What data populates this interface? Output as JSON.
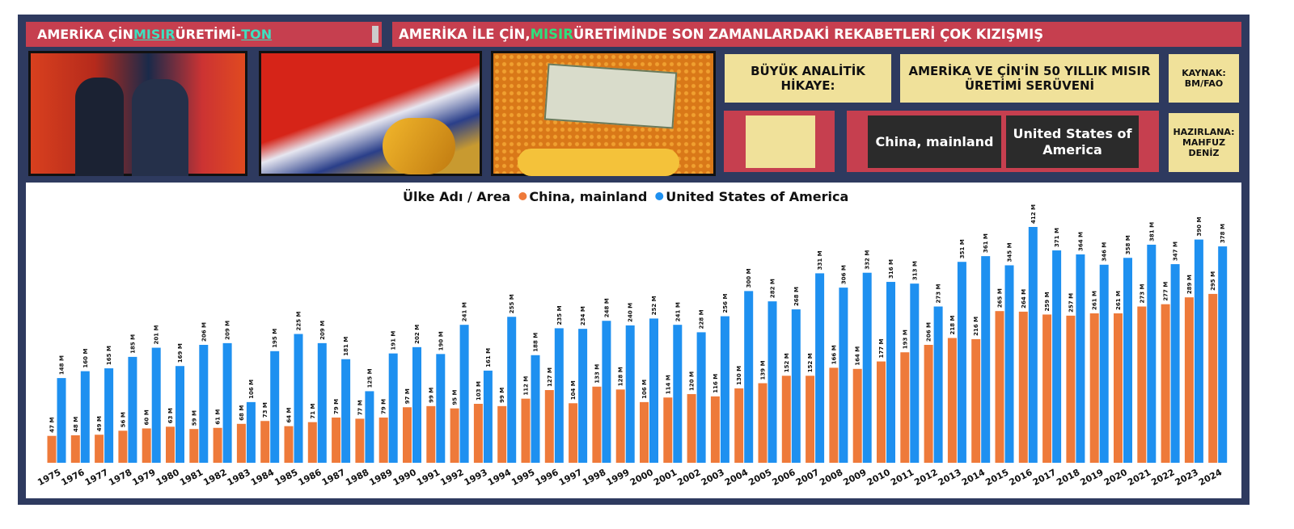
{
  "header": {
    "title": [
      "AMERİKA ÇİN ",
      "MISIR",
      " ÜRETİMİ-",
      "TON"
    ],
    "headline": [
      "AMERİKA İLE ÇİN, ",
      "MISIR",
      " ÜRETİMİNDE SON ZAMANLARDAKİ REKABETLERİ ÇOK KIZIŞMIŞ"
    ]
  },
  "panels": {
    "story_label": "BÜYÜK ANALİTİK HİKAYE:",
    "story_title": "AMERİKA VE ÇİN'İN 50 YILLIK MISIR ÜRETİMİ SERÜVENİ",
    "source": "KAYNAK: BM/FAO",
    "author": "HAZIRLANA: MAHFUZ DENİZ",
    "slicer": [
      "China, mainland",
      "United States of America"
    ]
  },
  "chart_data": {
    "type": "bar",
    "legend_title": "Ülke Adı / Area",
    "categories": [
      "1975",
      "1976",
      "1977",
      "1978",
      "1979",
      "1980",
      "1981",
      "1982",
      "1983",
      "1984",
      "1985",
      "1986",
      "1987",
      "1988",
      "1989",
      "1990",
      "1991",
      "1992",
      "1993",
      "1994",
      "1995",
      "1996",
      "1997",
      "1998",
      "1999",
      "2000",
      "2001",
      "2002",
      "2003",
      "2004",
      "2005",
      "2006",
      "2007",
      "2008",
      "2009",
      "2010",
      "2011",
      "2012",
      "2013",
      "2014",
      "2015",
      "2016",
      "2017",
      "2018",
      "2019",
      "2020",
      "2021",
      "2022",
      "2023",
      "2024"
    ],
    "series": [
      {
        "name": "China, mainland",
        "color": "#ee7a3a",
        "values": [
          47,
          48,
          49,
          56,
          60,
          63,
          59,
          61,
          68,
          73,
          64,
          71,
          79,
          77,
          79,
          97,
          99,
          95,
          103,
          99,
          112,
          127,
          104,
          133,
          128,
          106,
          114,
          120,
          116,
          130,
          139,
          152,
          152,
          166,
          164,
          177,
          193,
          206,
          218,
          216,
          265,
          264,
          259,
          257,
          261,
          261,
          273,
          277,
          289,
          295
        ],
        "value_labels": [
          "47 M",
          "48 M",
          "49 M",
          "56 M",
          "60 M",
          "63 M",
          "59 M",
          "61 M",
          "68 M",
          "73 M",
          "64 M",
          "71 M",
          "79 M",
          "77 M",
          "79 M",
          "97 M",
          "99 M",
          "95 M",
          "103 M",
          "99 M",
          "112 M",
          "127 M",
          "104 M",
          "133 M",
          "128 M",
          "106 M",
          "114 M",
          "120 M",
          "116 M",
          "130 M",
          "139 M",
          "152 M",
          "152 M",
          "166 M",
          "164 M",
          "177 M",
          "193 M",
          "206 M",
          "218 M",
          "216 M",
          "265 M",
          "264 M",
          "259 M",
          "257 M",
          "261 M",
          "261 M",
          "273 M",
          "277 M",
          "289 M",
          "295 M"
        ]
      },
      {
        "name": "United States of America",
        "color": "#1e90f0",
        "values": [
          148,
          160,
          165,
          185,
          201,
          169,
          206,
          209,
          106,
          195,
          225,
          209,
          181,
          125,
          191,
          202,
          190,
          241,
          161,
          255,
          188,
          235,
          234,
          248,
          240,
          252,
          241,
          228,
          256,
          300,
          282,
          268,
          331,
          306,
          332,
          316,
          313,
          273,
          351,
          361,
          345,
          412,
          371,
          364,
          346,
          358,
          381,
          347,
          390,
          378
        ],
        "value_labels": [
          "148 M",
          "160 M",
          "165 M",
          "185 M",
          "201 M",
          "169 M",
          "206 M",
          "209 M",
          "106 M",
          "195 M",
          "225 M",
          "209 M",
          "181 M",
          "125 M",
          "191 M",
          "202 M",
          "190 M",
          "241 M",
          "161 M",
          "255 M",
          "188 M",
          "235 M",
          "234 M",
          "248 M",
          "240 M",
          "252 M",
          "241 M",
          "228 M",
          "256 M",
          "300 M",
          "282 M",
          "268 M",
          "331 M",
          "306 M",
          "332 M",
          "316 M",
          "313 M",
          "273 M",
          "351 M",
          "361 M",
          "345 M",
          "412 M",
          "371 M",
          "364 M",
          "346 M",
          "358 M",
          "381 M",
          "347 M",
          "390 M",
          "378 M"
        ]
      }
    ]
  }
}
